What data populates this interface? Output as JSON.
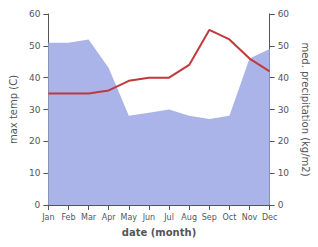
{
  "chart_data": {
    "type": "line",
    "xlabel": "date (month)",
    "ylabel": "max temp (C)",
    "y2label": "med. precipitation (kg/m2)",
    "categories": [
      "Jan",
      "Feb",
      "Mar",
      "Apr",
      "May",
      "Jun",
      "Jul",
      "Aug",
      "Sep",
      "Oct",
      "Nov",
      "Dec"
    ],
    "series": [
      {
        "type": "area",
        "axis": "y2",
        "color": "#aab4e8",
        "values": [
          51,
          51,
          52,
          43,
          28,
          29,
          30,
          28,
          27,
          28,
          46,
          49
        ]
      },
      {
        "type": "line",
        "color": "#c0393b",
        "values": [
          35,
          35,
          35,
          36,
          39,
          40,
          40,
          44,
          55,
          52,
          46,
          42
        ]
      }
    ],
    "ylim": [
      0,
      60
    ],
    "yticks": [
      0,
      10,
      20,
      30,
      40,
      50,
      60
    ],
    "y2lim": [
      0,
      60
    ],
    "y2ticks": [
      0,
      10,
      20,
      30,
      40,
      50,
      60
    ],
    "grid": false
  }
}
